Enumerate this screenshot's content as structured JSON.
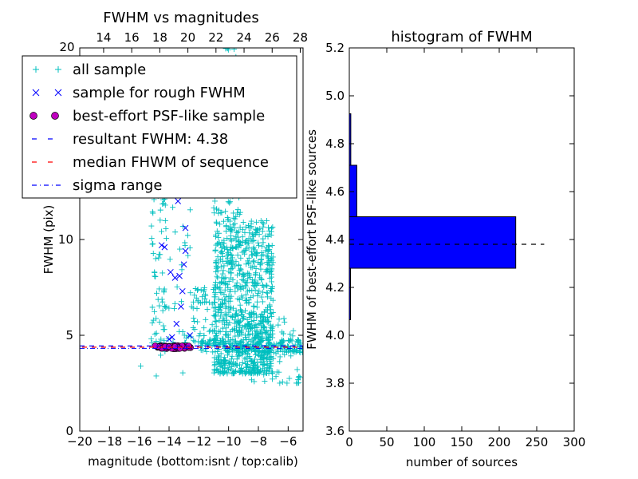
{
  "chart_data": [
    {
      "type": "scatter",
      "title": "FWHM vs magnitudes",
      "xlabel": "magnitude (bottom:isnt / top:calib)",
      "ylabel": "FWHM (pix)",
      "xlim": [
        -20,
        -5
      ],
      "ylim": [
        0,
        20
      ],
      "x_ticks": [
        -20,
        -18,
        -16,
        -14,
        -12,
        -10,
        -8,
        -6
      ],
      "x_tick_labels": [
        "−20",
        "−18",
        "−16",
        "−14",
        "−12",
        "−10",
        "−8",
        "−6"
      ],
      "y_ticks": [
        0,
        5,
        10
      ],
      "y_tick_labels": [
        "0",
        "5",
        "10"
      ],
      "top_axis": {
        "ticks": [
          14,
          16,
          18,
          20,
          22,
          24,
          26,
          28
        ],
        "tick_labels": [
          "14",
          "16",
          "18",
          "20",
          "22",
          "24",
          "26",
          "28"
        ],
        "corner_label": "20"
      },
      "legend": {
        "placement": "top-left",
        "entries": [
          {
            "label": "all sample",
            "marker": "+",
            "color": "#00bfbf"
          },
          {
            "label": "sample for rough FWHM",
            "marker": "x",
            "color": "#0000ff"
          },
          {
            "label": "best-effort PSF-like sample",
            "marker": "o",
            "color": "#bf00bf"
          },
          {
            "label": "resultant FWHM: 4.38",
            "marker": "dashed",
            "color": "#0000ff"
          },
          {
            "label": "median FHWM of sequence",
            "marker": "dashed",
            "color": "#ff0000"
          },
          {
            "label": "sigma range",
            "marker": "dashdot",
            "color": "#0000ff"
          }
        ]
      },
      "resultant_fwhm": 4.38,
      "series": [
        {
          "name": "sample for rough FWHM",
          "color": "#0000ff",
          "marker": "x",
          "points": [
            [
              -14.5,
              9.7
            ],
            [
              -14.3,
              9.6
            ],
            [
              -13.9,
              8.3
            ],
            [
              -13.6,
              8.0
            ],
            [
              -13.3,
              8.1
            ],
            [
              -13.4,
              12.0
            ],
            [
              -12.9,
              10.6
            ],
            [
              -12.9,
              9.4
            ],
            [
              -13.0,
              8.7
            ],
            [
              -13.1,
              7.3
            ],
            [
              -13.2,
              6.5
            ],
            [
              -13.5,
              5.6
            ],
            [
              -12.6,
              5.0
            ],
            [
              -13.8,
              4.9
            ],
            [
              -14.0,
              4.8
            ]
          ]
        },
        {
          "name": "best-effort PSF-like sample",
          "color": "#bf00bf",
          "marker": "o",
          "x_range": [
            -15.0,
            -12.5
          ],
          "y_center": 4.38,
          "y_spread": 0.18,
          "count": 70
        },
        {
          "name": "all sample",
          "color": "#00bfbf",
          "marker": "+",
          "clusters": [
            {
              "x_range": [
                -11.0,
                -7.0
              ],
              "y_range": [
                3.0,
                11.0
              ],
              "count": 900
            },
            {
              "x_range": [
                -11.0,
                -9.2
              ],
              "y_range": [
                11.0,
                20.0
              ],
              "count": 160
            },
            {
              "x_range": [
                -15.2,
                -14.2
              ],
              "y_range": [
                4.6,
                12.8
              ],
              "count": 60
            },
            {
              "x_range": [
                -14.5,
                -12.5
              ],
              "y_range": [
                4.5,
                12.0
              ],
              "count": 35
            },
            {
              "x_range": [
                -12.5,
                -10.8
              ],
              "y_range": [
                4.5,
                7.5
              ],
              "count": 60
            },
            {
              "x_range": [
                -12.0,
                -5.0
              ],
              "y_range": [
                4.1,
                4.8
              ],
              "count": 150
            },
            {
              "x_range": [
                -8.5,
                -5.2
              ],
              "y_range": [
                2.5,
                6.0
              ],
              "count": 70
            },
            {
              "x_range": [
                -16.0,
                -13.0
              ],
              "y_range": [
                2.8,
                4.2
              ],
              "count": 5
            }
          ]
        }
      ]
    },
    {
      "type": "bar",
      "orientation": "horizontal",
      "title": "histogram of FWHM",
      "xlabel": "number of sources",
      "ylabel": "FWHM of best-effort PSF-like sources",
      "xlim": [
        0,
        300
      ],
      "ylim": [
        3.6,
        5.2
      ],
      "x_ticks": [
        0,
        50,
        100,
        150,
        200,
        250,
        300
      ],
      "x_tick_labels": [
        "0",
        "50",
        "100",
        "150",
        "200",
        "250",
        "300"
      ],
      "y_ticks": [
        3.6,
        3.8,
        4.0,
        4.2,
        4.4,
        4.6,
        4.8,
        5.0,
        5.2
      ],
      "y_tick_labels": [
        "3.6",
        "3.8",
        "4.0",
        "4.2",
        "4.4",
        "4.6",
        "4.8",
        "5.0",
        "5.2"
      ],
      "bins": [
        {
          "y0": 4.065,
          "y1": 4.28,
          "count": 1
        },
        {
          "y0": 4.28,
          "y1": 4.495,
          "count": 222
        },
        {
          "y0": 4.495,
          "y1": 4.71,
          "count": 10
        },
        {
          "y0": 4.71,
          "y1": 4.925,
          "count": 2
        }
      ],
      "bar_color": "#0000ff",
      "reference_line": {
        "y": 4.38,
        "x_range": [
          0,
          260
        ],
        "style": "dashed"
      }
    }
  ]
}
